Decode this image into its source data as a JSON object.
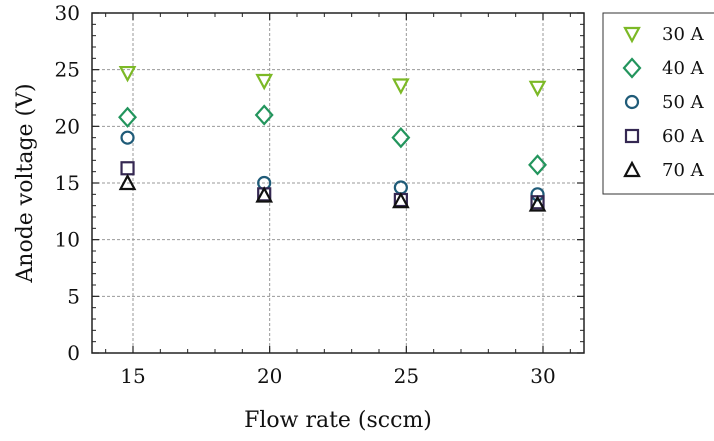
{
  "chart_data": {
    "type": "scatter",
    "xlabel": "Flow rate (sccm)",
    "ylabel": "Anode voltage (V)",
    "xlim": [
      13.5,
      31.5
    ],
    "ylim": [
      0,
      30
    ],
    "xticks": [
      15,
      20,
      25,
      30
    ],
    "yticks": [
      0,
      5,
      10,
      15,
      20,
      25,
      30
    ],
    "grid": true,
    "legend_position": "right",
    "x": [
      15,
      20,
      25,
      30
    ],
    "series": [
      {
        "name": "30 A",
        "marker": "triangle-down",
        "color": "#7cb926",
        "values": [
          24.7,
          24.0,
          23.6,
          23.4
        ]
      },
      {
        "name": "40 A",
        "marker": "diamond",
        "color": "#23955d",
        "values": [
          20.8,
          21.0,
          19.0,
          16.6
        ]
      },
      {
        "name": "50 A",
        "marker": "circle",
        "color": "#1f5b78",
        "values": [
          19.0,
          15.0,
          14.6,
          14.0
        ]
      },
      {
        "name": "60 A",
        "marker": "square",
        "color": "#352852",
        "values": [
          16.3,
          14.0,
          13.5,
          13.3
        ]
      },
      {
        "name": "70 A",
        "marker": "triangle-up",
        "color": "#111111",
        "values": [
          15.0,
          13.9,
          13.4,
          13.1
        ]
      }
    ]
  }
}
